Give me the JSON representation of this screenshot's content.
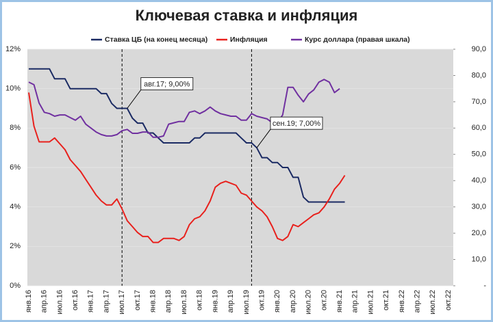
{
  "chart_data": {
    "type": "line",
    "title": "Ключевая ставка и инфляция",
    "categories": [
      "янв.16",
      null,
      null,
      "апр.16",
      null,
      null,
      "июл.16",
      null,
      null,
      "окт.16",
      null,
      null,
      "янв.17",
      null,
      null,
      "апр.17",
      null,
      null,
      "июл.17",
      null,
      null,
      "окт.17",
      null,
      null,
      "янв.18",
      null,
      null,
      "апр.18",
      null,
      null,
      "июл.18",
      null,
      null,
      "окт.18",
      null,
      null,
      "янв.19",
      null,
      null,
      "апр.19",
      null,
      null,
      "июл.19",
      null,
      null,
      "окт.19",
      null,
      null,
      "янв.20",
      null,
      null,
      "апр.20",
      null,
      null,
      "июл.20",
      null,
      null,
      "окт.20",
      null,
      null,
      "янв.21",
      null,
      null,
      "апр.21",
      null,
      null,
      "июл.21",
      null,
      null,
      "окт.21",
      null,
      null,
      "янв.22",
      null,
      null,
      "апр.22",
      null,
      null,
      "июл.22",
      null,
      null,
      "окт.22"
    ],
    "series": [
      {
        "name": "Ставка ЦБ (на конец месяца)",
        "color": "#1a2a63",
        "values": [
          11,
          11,
          11,
          11,
          11,
          10.5,
          10.5,
          10.5,
          10,
          10,
          10,
          10,
          10,
          10,
          9.75,
          9.75,
          9.25,
          9,
          9,
          9,
          8.5,
          8.25,
          8.25,
          7.75,
          7.75,
          7.5,
          7.25,
          7.25,
          7.25,
          7.25,
          7.25,
          7.25,
          7.5,
          7.5,
          7.75,
          7.75,
          7.75,
          7.75,
          7.75,
          7.75,
          7.75,
          7.5,
          7.25,
          7.25,
          7,
          6.5,
          6.5,
          6.25,
          6.25,
          6,
          6,
          5.5,
          5.5,
          4.5,
          4.25,
          4.25,
          4.25,
          4.25,
          4.25,
          4.25,
          4.25,
          4.25,
          null,
          null,
          null,
          null,
          null,
          null,
          null,
          null,
          null,
          null,
          null,
          null,
          null,
          null,
          null,
          null,
          null,
          null,
          null,
          null
        ]
      },
      {
        "name": "Инфляция",
        "color": "#e8201c",
        "values": [
          9.8,
          8.1,
          7.3,
          7.3,
          7.3,
          7.5,
          7.2,
          6.9,
          6.4,
          6.1,
          5.8,
          5.4,
          5.0,
          4.6,
          4.3,
          4.1,
          4.1,
          4.4,
          3.9,
          3.3,
          3.0,
          2.7,
          2.5,
          2.5,
          2.2,
          2.2,
          2.4,
          2.4,
          2.4,
          2.3,
          2.5,
          3.1,
          3.4,
          3.5,
          3.8,
          4.3,
          5.0,
          5.2,
          5.3,
          5.2,
          5.1,
          4.7,
          4.6,
          4.3,
          4.0,
          3.8,
          3.5,
          3.0,
          2.4,
          2.3,
          2.5,
          3.1,
          3.0,
          3.2,
          3.4,
          3.6,
          3.7,
          4.0,
          4.4,
          4.9,
          5.2,
          5.6,
          null,
          null,
          null,
          null,
          null,
          null,
          null,
          null,
          null,
          null,
          null,
          null,
          null,
          null,
          null,
          null,
          null,
          null,
          null,
          null
        ]
      },
      {
        "name": "Курс доллара (правая шкала)",
        "color": "#7030a0",
        "axis": "y2",
        "values": [
          77.5,
          76.5,
          69.5,
          66,
          65.5,
          64.5,
          65,
          65,
          64,
          63,
          64.5,
          61.5,
          60,
          58.5,
          57.5,
          57,
          57,
          57.5,
          59,
          59.5,
          58,
          58,
          58.5,
          58.5,
          56.5,
          56.5,
          57,
          61.5,
          62,
          62.5,
          62.5,
          66,
          66.5,
          65.5,
          66.5,
          68,
          66.5,
          65.5,
          65,
          64.5,
          64.5,
          63,
          63,
          65.5,
          64.5,
          64,
          63.5,
          62,
          62,
          65,
          75.5,
          75.5,
          72.5,
          70,
          73,
          74.5,
          77.5,
          78.5,
          77.5,
          73.5,
          75,
          null,
          null,
          null,
          null,
          null,
          null,
          null,
          null,
          null,
          null,
          null,
          null,
          null,
          null,
          null,
          null,
          null,
          null,
          null,
          null,
          null
        ]
      }
    ],
    "ylim": [
      0,
      12
    ],
    "yticks": [
      {
        "value": 0,
        "label": "0%"
      },
      {
        "value": 2,
        "label": "2%"
      },
      {
        "value": 4,
        "label": "4%"
      },
      {
        "value": 6,
        "label": "6%"
      },
      {
        "value": 8,
        "label": "8%"
      },
      {
        "value": 10,
        "label": "10%"
      },
      {
        "value": 12,
        "label": "12%"
      }
    ],
    "y2lim": [
      0,
      90
    ],
    "y2ticks": [
      {
        "value": 0,
        "label": "-"
      },
      {
        "value": 10,
        "label": "10,0"
      },
      {
        "value": 20,
        "label": "20,0"
      },
      {
        "value": 30,
        "label": "30,0"
      },
      {
        "value": 40,
        "label": "40,0"
      },
      {
        "value": 50,
        "label": "50,0"
      },
      {
        "value": 60,
        "label": "60,0"
      },
      {
        "value": 70,
        "label": "70,0"
      },
      {
        "value": 80,
        "label": "80,0"
      },
      {
        "value": 90,
        "label": "90,0"
      }
    ],
    "annotations": [
      {
        "text": "авг.17; 9,00%",
        "series": 0,
        "index": 19
      },
      {
        "text": "сен.19; 7,00%",
        "series": 0,
        "index": 44
      }
    ],
    "legend": "top"
  }
}
